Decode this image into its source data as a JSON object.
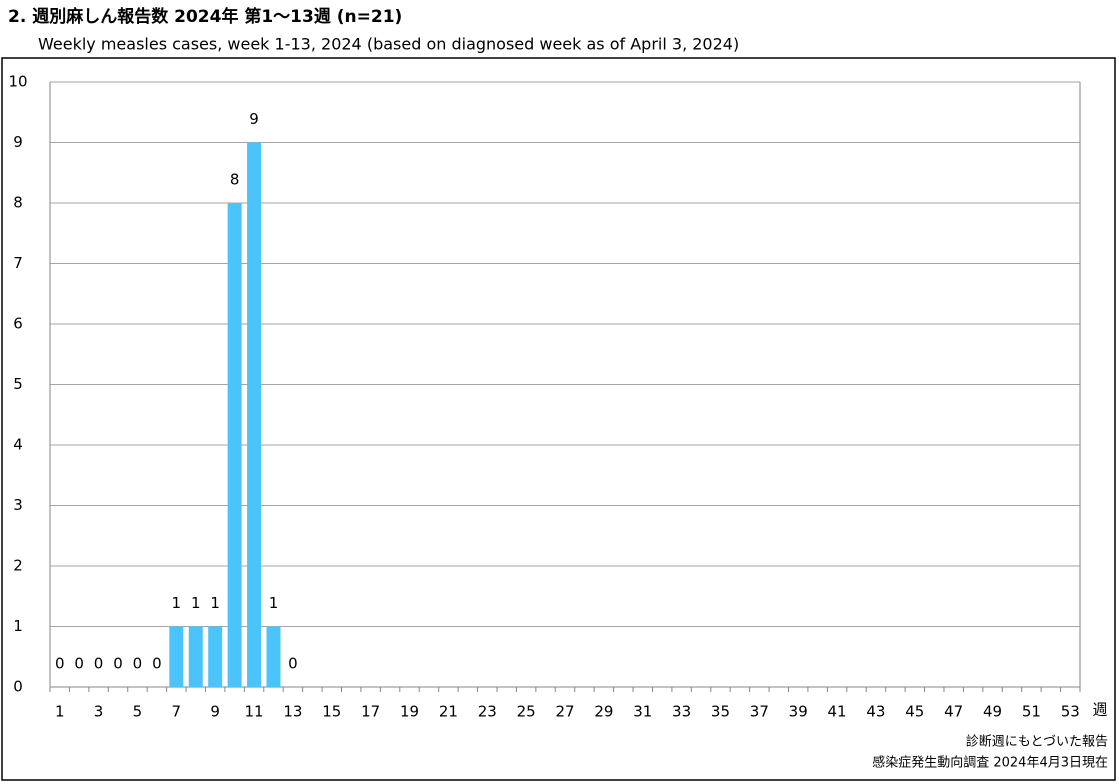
{
  "chart_data": {
    "type": "bar",
    "title": "2. 週別麻しん報告数  2024年 第1～13週 (n=21)",
    "subtitle": "Weekly measles cases, week 1-13, 2024 (based on diagnosed week as of April 3, 2024)",
    "x_label": "週",
    "footnotes": [
      "診断週にもとづいた報告",
      "感染症発生動向調査 2024年4月3日現在"
    ],
    "categories": [
      1,
      null,
      3,
      null,
      5,
      null,
      7,
      null,
      9,
      null,
      11,
      null,
      13,
      null,
      15,
      null,
      17,
      null,
      19,
      null,
      21,
      null,
      23,
      null,
      25,
      null,
      27,
      null,
      29,
      null,
      31,
      null,
      33,
      null,
      35,
      null,
      37,
      null,
      39,
      null,
      41,
      null,
      43,
      null,
      45,
      null,
      47,
      null,
      49,
      null,
      51,
      null,
      53
    ],
    "values": [
      0,
      0,
      0,
      0,
      0,
      0,
      1,
      1,
      1,
      8,
      9,
      1,
      0,
      null,
      null,
      null,
      null,
      null,
      null,
      null,
      null,
      null,
      null,
      null,
      null,
      null,
      null,
      null,
      null,
      null,
      null,
      null,
      null,
      null,
      null,
      null,
      null,
      null,
      null,
      null,
      null,
      null,
      null,
      null,
      null,
      null,
      null,
      null,
      null,
      null,
      null,
      null,
      null
    ],
    "color": "#4bc4fb",
    "ylim": [
      0,
      10
    ],
    "yticks": [
      0,
      1,
      2,
      3,
      4,
      5,
      6,
      7,
      8,
      9,
      10
    ],
    "grid": true
  }
}
